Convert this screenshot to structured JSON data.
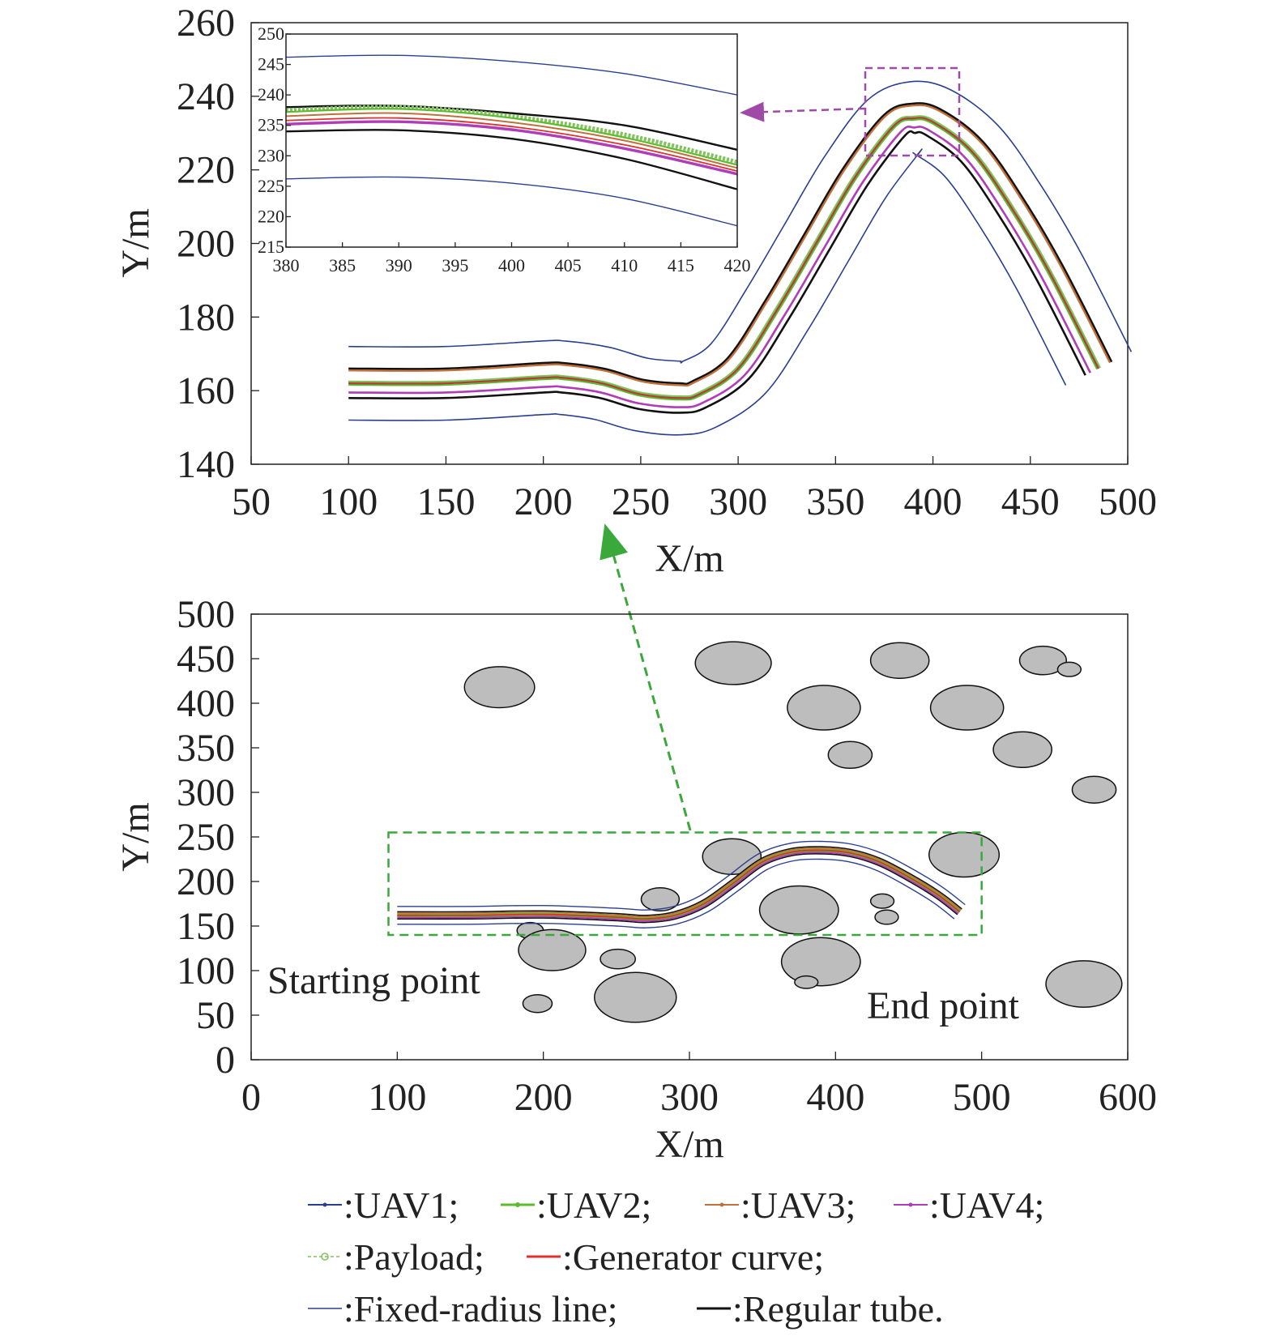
{
  "colors": {
    "uav1": "#2b3f8f",
    "uav2": "#5dbb2f",
    "uav3": "#c0703a",
    "uav4": "#b03cb8",
    "payload": "#7fc25a",
    "generator": "#e0302c",
    "fixed_radius": "#2b3f8f",
    "regular_tube": "#111111",
    "obstacle_fill": "#bdbdbd",
    "zoom_box_top": "#a04aa8",
    "zoom_box_bottom": "#3aa83a"
  },
  "chart_data": [
    {
      "id": "top",
      "type": "line",
      "xlabel": "X/m",
      "ylabel": "Y/m",
      "xlim": [
        50,
        500
      ],
      "ylim": [
        140,
        260
      ],
      "xticks": [
        50,
        100,
        150,
        200,
        250,
        300,
        350,
        400,
        450,
        500
      ],
      "yticks": [
        140,
        160,
        180,
        200,
        220,
        240,
        260
      ],
      "generator_curve": {
        "x": [
          100,
          150,
          200,
          210,
          230,
          250,
          270,
          280,
          300,
          320,
          340,
          360,
          380,
          390,
          400,
          420,
          440,
          460,
          485
        ],
        "y": [
          162,
          162,
          163.5,
          163.5,
          162,
          159,
          158,
          159,
          166,
          182,
          200,
          218,
          232,
          234,
          233,
          225,
          210,
          192,
          166
        ]
      },
      "series": [
        {
          "name": "UAV1",
          "offset": 0
        },
        {
          "name": "UAV2",
          "offset": 0
        },
        {
          "name": "UAV3",
          "offset": 3.5
        },
        {
          "name": "UAV4",
          "offset": -2.5
        },
        {
          "name": "Payload",
          "offset": 0.5
        },
        {
          "name": "Generator curve",
          "offset": 0
        }
      ],
      "fixed_radius_offset": 10,
      "regular_tube_offset": 4
    },
    {
      "id": "inset",
      "type": "line",
      "xlim": [
        380,
        420
      ],
      "ylim": [
        215,
        250
      ],
      "xticks": [
        380,
        385,
        390,
        395,
        400,
        405,
        410,
        415,
        420
      ],
      "yticks": [
        215,
        220,
        225,
        230,
        235,
        240,
        245,
        250
      ],
      "series": [
        {
          "name": "Fixed-radius upper",
          "x": [
            380,
            390,
            400,
            410,
            420
          ],
          "y": [
            246.2,
            246.5,
            245.5,
            243.5,
            240
          ]
        },
        {
          "name": "Regular tube upper",
          "x": [
            380,
            390,
            400,
            410,
            420
          ],
          "y": [
            238,
            238.2,
            237,
            235,
            231
          ]
        },
        {
          "name": "Payload",
          "x": [
            380,
            390,
            400,
            410,
            420
          ],
          "y": [
            237.5,
            238,
            236.5,
            233.5,
            229
          ]
        },
        {
          "name": "UAV2",
          "x": [
            380,
            390,
            400,
            410,
            420
          ],
          "y": [
            237.2,
            237.7,
            236.2,
            233,
            228.5
          ]
        },
        {
          "name": "UAV3",
          "x": [
            380,
            390,
            400,
            410,
            420
          ],
          "y": [
            236.5,
            237,
            235.5,
            232.5,
            228
          ]
        },
        {
          "name": "Generator curve",
          "x": [
            380,
            390,
            400,
            410,
            420
          ],
          "y": [
            235.8,
            236.2,
            234.8,
            231.8,
            227.5
          ]
        },
        {
          "name": "UAV4",
          "x": [
            380,
            390,
            400,
            410,
            420
          ],
          "y": [
            235.2,
            235.6,
            234.3,
            231.2,
            227
          ]
        },
        {
          "name": "Regular tube lower",
          "x": [
            380,
            390,
            400,
            410,
            420
          ],
          "y": [
            234,
            234.2,
            232.8,
            229.5,
            224.5
          ]
        },
        {
          "name": "Fixed-radius lower",
          "x": [
            380,
            390,
            400,
            410,
            420
          ],
          "y": [
            226.2,
            226.5,
            225.5,
            223,
            218.5
          ]
        }
      ]
    },
    {
      "id": "bottom",
      "type": "line",
      "xlabel": "X/m",
      "ylabel": "Y/m",
      "xlim": [
        0,
        600
      ],
      "ylim": [
        0,
        500
      ],
      "xticks": [
        0,
        100,
        200,
        300,
        400,
        500,
        600
      ],
      "yticks": [
        0,
        50,
        100,
        150,
        200,
        250,
        300,
        350,
        400,
        450,
        500
      ],
      "path": {
        "x": [
          100,
          150,
          200,
          250,
          270,
          290,
          310,
          330,
          350,
          370,
          390,
          410,
          430,
          450,
          470,
          485
        ],
        "y": [
          162,
          162,
          163,
          160,
          158,
          162,
          175,
          198,
          222,
          233,
          235,
          232,
          222,
          205,
          185,
          166
        ]
      },
      "fixed_radius_offset": 10,
      "regular_tube_offset": 4,
      "obstacles": [
        {
          "cx": 170,
          "cy": 418,
          "rx": 24,
          "ry": 23
        },
        {
          "cx": 330,
          "cy": 445,
          "rx": 26,
          "ry": 24
        },
        {
          "cx": 392,
          "cy": 395,
          "rx": 25,
          "ry": 25
        },
        {
          "cx": 444,
          "cy": 448,
          "rx": 20,
          "ry": 20
        },
        {
          "cx": 490,
          "cy": 395,
          "rx": 25,
          "ry": 25
        },
        {
          "cx": 542,
          "cy": 448,
          "rx": 16,
          "ry": 16
        },
        {
          "cx": 560,
          "cy": 438,
          "rx": 8,
          "ry": 8
        },
        {
          "cx": 410,
          "cy": 342,
          "rx": 15,
          "ry": 15
        },
        {
          "cx": 528,
          "cy": 348,
          "rx": 20,
          "ry": 20
        },
        {
          "cx": 577,
          "cy": 303,
          "rx": 15,
          "ry": 15
        },
        {
          "cx": 329,
          "cy": 228,
          "rx": 20,
          "ry": 20
        },
        {
          "cx": 488,
          "cy": 230,
          "rx": 24,
          "ry": 25
        },
        {
          "cx": 375,
          "cy": 168,
          "rx": 27,
          "ry": 27
        },
        {
          "cx": 432,
          "cy": 178,
          "rx": 8,
          "ry": 8
        },
        {
          "cx": 435,
          "cy": 160,
          "rx": 8,
          "ry": 8
        },
        {
          "cx": 280,
          "cy": 180,
          "rx": 13,
          "ry": 13
        },
        {
          "cx": 191,
          "cy": 145,
          "rx": 9,
          "ry": 9
        },
        {
          "cx": 206,
          "cy": 123,
          "rx": 23,
          "ry": 23
        },
        {
          "cx": 251,
          "cy": 113,
          "rx": 12,
          "ry": 11
        },
        {
          "cx": 196,
          "cy": 63,
          "rx": 10,
          "ry": 10
        },
        {
          "cx": 263,
          "cy": 70,
          "rx": 28,
          "ry": 28
        },
        {
          "cx": 390,
          "cy": 110,
          "rx": 27,
          "ry": 27
        },
        {
          "cx": 380,
          "cy": 87,
          "rx": 8,
          "ry": 7
        },
        {
          "cx": 570,
          "cy": 85,
          "rx": 26,
          "ry": 26
        }
      ],
      "zoom_box": {
        "x": [
          94,
          500
        ],
        "y": [
          140,
          255
        ]
      },
      "annotations": [
        "Starting point",
        "End point"
      ]
    }
  ],
  "legend": {
    "uav1": ":UAV1;",
    "uav2": ":UAV2;",
    "uav3": ":UAV3;",
    "uav4": ":UAV4;",
    "payload": ":Payload;",
    "generator": ":Generator curve;",
    "fixed_radius": ":Fixed-radius line;",
    "regular_tube": ":Regular tube."
  }
}
